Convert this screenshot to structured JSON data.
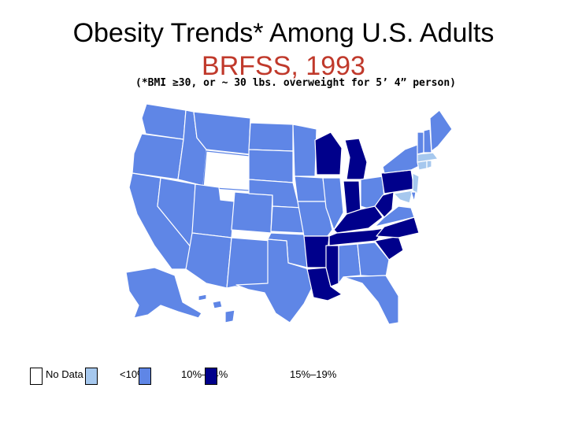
{
  "title": "Obesity Trends* Among U.S. Adults",
  "subtitle": "BRFSS, 1993",
  "footnote": "(*BMI ≥30, or ~ 30 lbs. overweight for 5’ 4” person)",
  "colors": {
    "no_data": "#ffffff",
    "lt10": "#a6c8ee",
    "r10_14": "#5f86e6",
    "r15_19": "#00008b",
    "title": "#000000",
    "subtitle": "#c0392b",
    "border": "#ffffff"
  },
  "legend": {
    "no_data": "No Data",
    "lt10": "<10%",
    "r10_14": "10%–14%",
    "r15_19": "15%–19%"
  },
  "map_data": {
    "categories": [
      "No Data",
      "<10%",
      "10%–14%",
      "15%–19%"
    ],
    "states_15_19": [
      "Wisconsin",
      "Michigan",
      "Indiana",
      "Kentucky",
      "West Virginia",
      "Pennsylvania",
      "Tennessee",
      "North Carolina",
      "South Carolina",
      "Arkansas",
      "Mississippi",
      "Louisiana"
    ],
    "states_lt10": [
      "Massachusetts",
      "Connecticut",
      "Rhode Island",
      "New Jersey",
      "Maryland"
    ],
    "states_no_data": [
      "Wyoming"
    ],
    "states_10_14": "all other states"
  }
}
